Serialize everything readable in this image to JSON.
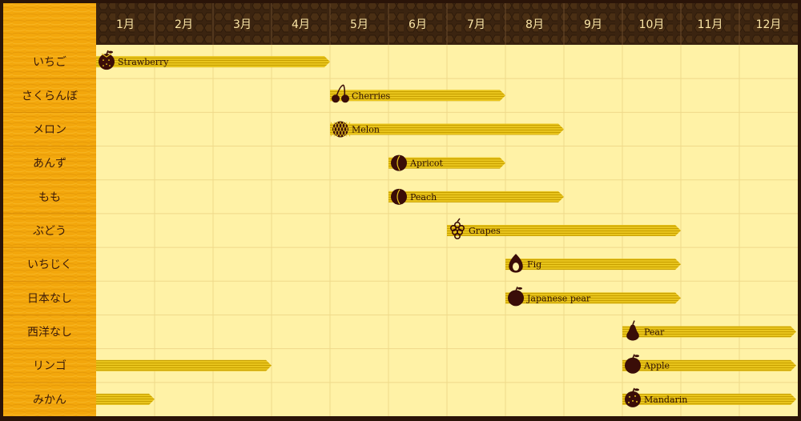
{
  "chart_data": {
    "type": "gantt",
    "title": "",
    "months": [
      "1月",
      "2月",
      "3月",
      "4月",
      "5月",
      "6月",
      "7月",
      "8月",
      "9月",
      "10月",
      "11月",
      "12月"
    ],
    "fruits": [
      {
        "name": "いちご",
        "segments": [
          {
            "start": 1,
            "end": 4,
            "label": "Strawberry",
            "icon": "strawberry-icon"
          }
        ]
      },
      {
        "name": "さくらんぼ",
        "segments": [
          {
            "start": 5,
            "end": 7,
            "label": "Cherries",
            "icon": "cherries-icon"
          }
        ]
      },
      {
        "name": "メロン",
        "segments": [
          {
            "start": 5,
            "end": 8,
            "label": "Melon",
            "icon": "melon-icon"
          }
        ]
      },
      {
        "name": "あんず",
        "segments": [
          {
            "start": 6,
            "end": 7,
            "label": "Apricot",
            "icon": "apricot-icon"
          }
        ]
      },
      {
        "name": "もも",
        "segments": [
          {
            "start": 6,
            "end": 8,
            "label": "Peach",
            "icon": "peach-icon"
          }
        ]
      },
      {
        "name": "ぶどう",
        "segments": [
          {
            "start": 7,
            "end": 10,
            "label": "Grapes",
            "icon": "grapes-icon"
          }
        ]
      },
      {
        "name": "いちじく",
        "segments": [
          {
            "start": 8,
            "end": 10,
            "label": "Fig",
            "icon": "fig-icon"
          }
        ]
      },
      {
        "name": "日本なし",
        "segments": [
          {
            "start": 8,
            "end": 10,
            "label": "Japanese pear",
            "icon": "japanese-pear-icon"
          }
        ]
      },
      {
        "name": "西洋なし",
        "segments": [
          {
            "start": 10,
            "end": 12,
            "label": "Pear",
            "icon": "pear-icon"
          }
        ]
      },
      {
        "name": "リンゴ",
        "segments": [
          {
            "start": 1,
            "end": 3,
            "label": "",
            "icon": ""
          },
          {
            "start": 10,
            "end": 12,
            "label": "Apple",
            "icon": "apple-icon"
          }
        ]
      },
      {
        "name": "みかん",
        "segments": [
          {
            "start": 1,
            "end": 1,
            "label": "",
            "icon": ""
          },
          {
            "start": 10,
            "end": 12,
            "label": "Mandarin",
            "icon": "mandarin-icon"
          }
        ]
      }
    ],
    "colors": {
      "frame": "#2a1408",
      "header": "#3a2410",
      "plot_bg": "#fff2a6",
      "gridline": "#efd98a",
      "sidebar": "#f3a70c",
      "bar": "#e6c21a",
      "bar_stripe": "#c9a200",
      "icon": "#3a0d08",
      "month_text": "#fbe6a6"
    }
  }
}
